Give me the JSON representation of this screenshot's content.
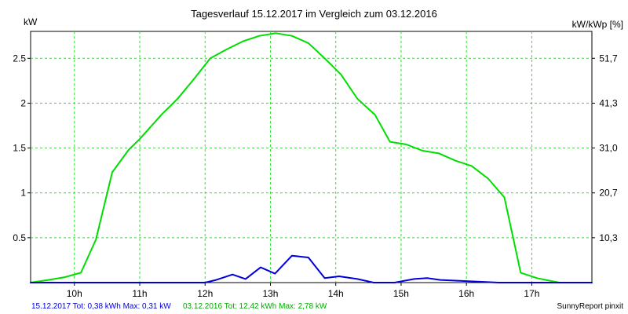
{
  "chart_data": {
    "type": "line",
    "title": "Tagesverlauf 15.12.2017 im Vergleich zum 03.12.2016",
    "ylabel_left": "kW",
    "ylabel_right": "kW/kWp [%]",
    "x_tick_labels": [
      "10h",
      "11h",
      "12h",
      "13h",
      "14h",
      "15h",
      "16h",
      "17h"
    ],
    "x_tick_hours": [
      10,
      11,
      12,
      13,
      14,
      15,
      16,
      17
    ],
    "xlim": [
      9.33,
      17.92
    ],
    "ylim": [
      0,
      2.8
    ],
    "y_ticks_left": [
      {
        "value": 0.5,
        "label": "0.5"
      },
      {
        "value": 1,
        "label": "1"
      },
      {
        "value": 1.5,
        "label": "1.5"
      },
      {
        "value": 2,
        "label": "2"
      },
      {
        "value": 2.5,
        "label": "2.5"
      }
    ],
    "y_ticks_right": [
      {
        "value": 0.5,
        "label": "10,3"
      },
      {
        "value": 1,
        "label": "20,7"
      },
      {
        "value": 1.5,
        "label": "31,0"
      },
      {
        "value": 2,
        "label": "41,3"
      },
      {
        "value": 2.5,
        "label": "51,7"
      }
    ],
    "grid": true,
    "series": [
      {
        "name": "15.12.2017",
        "color": "#0000dd",
        "points": [
          [
            9.33,
            0.0
          ],
          [
            12.0,
            0.0
          ],
          [
            12.17,
            0.03
          ],
          [
            12.42,
            0.09
          ],
          [
            12.62,
            0.04
          ],
          [
            12.85,
            0.17
          ],
          [
            13.07,
            0.1
          ],
          [
            13.33,
            0.3
          ],
          [
            13.58,
            0.28
          ],
          [
            13.83,
            0.05
          ],
          [
            14.05,
            0.07
          ],
          [
            14.33,
            0.04
          ],
          [
            14.58,
            0.0
          ],
          [
            14.9,
            0.0
          ],
          [
            15.2,
            0.04
          ],
          [
            15.4,
            0.05
          ],
          [
            15.6,
            0.03
          ],
          [
            15.9,
            0.02
          ],
          [
            16.2,
            0.01
          ],
          [
            16.5,
            0.0
          ],
          [
            17.92,
            0.0
          ]
        ]
      },
      {
        "name": "03.12.2016",
        "color": "#00dd00",
        "points": [
          [
            9.33,
            0.0
          ],
          [
            9.6,
            0.03
          ],
          [
            9.85,
            0.06
          ],
          [
            10.1,
            0.11
          ],
          [
            10.33,
            0.48
          ],
          [
            10.58,
            1.23
          ],
          [
            10.83,
            1.48
          ],
          [
            11.0,
            1.6
          ],
          [
            11.33,
            1.87
          ],
          [
            11.58,
            2.05
          ],
          [
            11.83,
            2.27
          ],
          [
            12.08,
            2.5
          ],
          [
            12.33,
            2.6
          ],
          [
            12.58,
            2.69
          ],
          [
            12.83,
            2.75
          ],
          [
            13.08,
            2.78
          ],
          [
            13.33,
            2.75
          ],
          [
            13.58,
            2.67
          ],
          [
            13.83,
            2.5
          ],
          [
            14.08,
            2.32
          ],
          [
            14.33,
            2.05
          ],
          [
            14.6,
            1.87
          ],
          [
            14.83,
            1.57
          ],
          [
            15.08,
            1.54
          ],
          [
            15.33,
            1.47
          ],
          [
            15.58,
            1.44
          ],
          [
            15.83,
            1.36
          ],
          [
            16.08,
            1.3
          ],
          [
            16.33,
            1.16
          ],
          [
            16.58,
            0.95
          ],
          [
            16.83,
            0.11
          ],
          [
            17.08,
            0.05
          ],
          [
            17.42,
            0.0
          ],
          [
            17.92,
            0.0
          ]
        ]
      }
    ]
  },
  "footer": {
    "series1_info": "15.12.2017 Tot: 0,38 kWh Max: 0,31 kW",
    "series2_info": "03.12.2016 Tot: 12,42 kWh Max: 2,78 kW",
    "credit": "SunnyReport pinxit"
  },
  "colors": {
    "series1": "#0000dd",
    "series2": "#00dd00",
    "grid": "#33dd33"
  }
}
